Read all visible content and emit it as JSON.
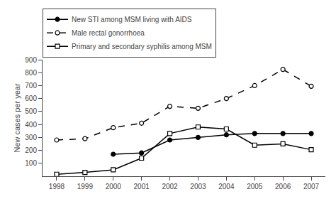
{
  "chart_data": {
    "type": "line",
    "x": [
      1998,
      1999,
      2000,
      2001,
      2002,
      2003,
      2004,
      2005,
      2006,
      2007
    ],
    "series": [
      {
        "name": "New STI among MSM living with AIDS",
        "color": "#000000",
        "marker": "circle",
        "line_style": "solid",
        "values": [
          null,
          null,
          170,
          180,
          280,
          300,
          320,
          330,
          330,
          330
        ]
      },
      {
        "name": "Male rectal gonorrhoea",
        "color": "#000000",
        "marker": "open circle",
        "line_style": "dashed",
        "values": [
          280,
          290,
          375,
          410,
          540,
          525,
          600,
          700,
          825,
          695
        ]
      },
      {
        "name": "Primary and secondary syphilis among MSM",
        "color": "#000000",
        "marker": "open square",
        "line_style": "solid",
        "values": [
          15,
          30,
          50,
          140,
          330,
          380,
          365,
          240,
          250,
          205
        ]
      }
    ],
    "ylabel": "New cases per year",
    "xlim": [
      1997.5,
      2007.5
    ],
    "xticks": [
      1998,
      1999,
      2000,
      2001,
      2002,
      2003,
      2004,
      2005,
      2006,
      2007
    ],
    "ylim": [
      0,
      900
    ],
    "yticks": [
      100,
      200,
      300,
      400,
      500,
      600,
      700,
      800,
      900
    ],
    "grid": false,
    "legend": "top"
  }
}
